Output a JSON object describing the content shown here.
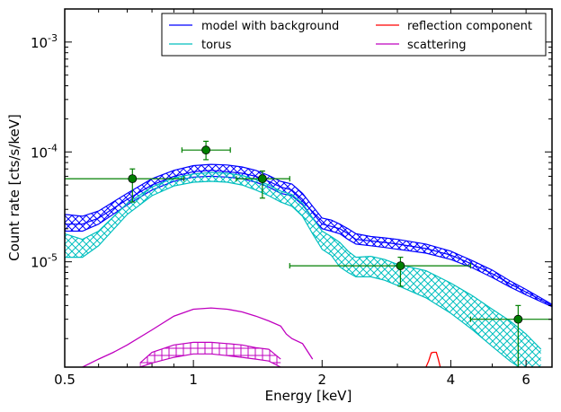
{
  "chart_data": {
    "type": "line",
    "xlabel": "Energy [keV]",
    "ylabel": "Count rate [cts/s/keV]",
    "xscale": "log",
    "yscale": "log",
    "xlim": [
      0.5,
      6.9
    ],
    "ylim": [
      1.1e-06,
      0.002
    ],
    "xticks": [
      {
        "value": 0.5,
        "label": "0.5"
      },
      {
        "value": 1,
        "label": "1"
      },
      {
        "value": 2,
        "label": "2"
      },
      {
        "value": 4,
        "label": "4"
      },
      {
        "value": 6,
        "label": "6"
      }
    ],
    "yticks": [
      {
        "value": 1e-05,
        "base": "10",
        "exp": "-5"
      },
      {
        "value": 0.0001,
        "base": "10",
        "exp": "-4"
      },
      {
        "value": 0.001,
        "base": "10",
        "exp": "-3"
      }
    ],
    "legend_position": "top-right",
    "legend": [
      {
        "name": "model with background",
        "color": "#0000ff"
      },
      {
        "name": "reflection component",
        "color": "#ff0000"
      },
      {
        "name": "torus",
        "color": "#00bfbf"
      },
      {
        "name": "scattering",
        "color": "#bf00bf"
      }
    ],
    "bands": [
      {
        "series": "model with background",
        "color": "#0000ff",
        "hatch": "x",
        "x": [
          0.5,
          0.55,
          0.6,
          0.7,
          0.8,
          0.9,
          1.0,
          1.1,
          1.2,
          1.3,
          1.4,
          1.5,
          1.6,
          1.7,
          1.8,
          1.9,
          2.0,
          2.1,
          2.2,
          2.3,
          2.4,
          2.6,
          2.8,
          3.0,
          3.5,
          4.0,
          4.5,
          5.0,
          5.5,
          6.0,
          6.9
        ],
        "low": [
          1.9e-05,
          1.9e-05,
          2.2e-05,
          3.3e-05,
          4.5e-05,
          5.4e-05,
          5.9e-05,
          6e-05,
          5.9e-05,
          5.7e-05,
          5.3e-05,
          4.8e-05,
          4.2e-05,
          4e-05,
          3.3e-05,
          2.5e-05,
          2e-05,
          1.9e-05,
          1.8e-05,
          1.6e-05,
          1.45e-05,
          1.4e-05,
          1.35e-05,
          1.3e-05,
          1.2e-05,
          1.05e-05,
          8.8e-06,
          7.2e-06,
          5.9e-06,
          5e-06,
          3.9e-06
        ],
        "mid": [
          2.2e-05,
          2.2e-05,
          2.5e-05,
          3.7e-05,
          5e-05,
          6e-05,
          6.6e-05,
          6.8e-05,
          6.6e-05,
          6.4e-05,
          6e-05,
          5.4e-05,
          4.8e-05,
          4.5e-05,
          3.7e-05,
          2.8e-05,
          2.2e-05,
          2.1e-05,
          2e-05,
          1.8e-05,
          1.6e-05,
          1.55e-05,
          1.5e-05,
          1.45e-05,
          1.32e-05,
          1.15e-05,
          9.5e-06,
          7.8e-06,
          6.3e-06,
          5.3e-06,
          4e-06
        ],
        "high": [
          2.7e-05,
          2.6e-05,
          2.9e-05,
          4.2e-05,
          5.7e-05,
          6.8e-05,
          7.5e-05,
          7.7e-05,
          7.6e-05,
          7.3e-05,
          6.8e-05,
          6.1e-05,
          5.4e-05,
          5.1e-05,
          4.2e-05,
          3.2e-05,
          2.5e-05,
          2.4e-05,
          2.2e-05,
          2e-05,
          1.8e-05,
          1.7e-05,
          1.65e-05,
          1.6e-05,
          1.45e-05,
          1.25e-05,
          1.02e-05,
          8.4e-06,
          6.7e-06,
          5.6e-06,
          4.1e-06
        ]
      },
      {
        "series": "torus",
        "color": "#00bfbf",
        "hatch": "x",
        "x": [
          0.5,
          0.55,
          0.6,
          0.7,
          0.8,
          0.9,
          1.0,
          1.1,
          1.2,
          1.3,
          1.4,
          1.5,
          1.6,
          1.7,
          1.8,
          1.9,
          2.0,
          2.1,
          2.2,
          2.3,
          2.4,
          2.6,
          2.8,
          3.0,
          3.5,
          4.0,
          4.5,
          5.0,
          5.5,
          6.0,
          6.5
        ],
        "low": [
          1.1e-05,
          1.1e-05,
          1.4e-05,
          2.7e-05,
          4e-05,
          4.9e-05,
          5.3e-05,
          5.4e-05,
          5.3e-05,
          5e-05,
          4.5e-05,
          4e-05,
          3.5e-05,
          3.2e-05,
          2.6e-05,
          1.8e-05,
          1.3e-05,
          1.15e-05,
          9e-06,
          8e-06,
          7.3e-06,
          7.3e-06,
          6.8e-06,
          6.1e-06,
          4.7e-06,
          3.4e-06,
          2.4e-06,
          1.7e-06,
          1.25e-06,
          1e-06,
          7e-07
        ],
        "high": [
          1.8e-05,
          1.6e-05,
          1.9e-05,
          3.4e-05,
          4.8e-05,
          5.8e-05,
          6.3e-05,
          6.5e-05,
          6.4e-05,
          6.1e-05,
          5.6e-05,
          5e-05,
          4.4e-05,
          4.1e-05,
          3.4e-05,
          2.5e-05,
          1.9e-05,
          1.7e-05,
          1.5e-05,
          1.25e-05,
          1.1e-05,
          1.12e-05,
          1.05e-05,
          9.5e-06,
          8.3e-06,
          6.4e-06,
          4.9e-06,
          3.7e-06,
          2.9e-06,
          2.2e-06,
          1.6e-06
        ]
      },
      {
        "series": "scattering",
        "color": "#bf00bf",
        "hatch": "+",
        "x": [
          0.75,
          0.8,
          0.9,
          1.0,
          1.1,
          1.2,
          1.3,
          1.4,
          1.5,
          1.6
        ],
        "low": [
          1.1e-06,
          1.2e-06,
          1.35e-06,
          1.45e-06,
          1.45e-06,
          1.4e-06,
          1.35e-06,
          1.3e-06,
          1.25e-06,
          1.1e-06
        ],
        "high": [
          1.2e-06,
          1.5e-06,
          1.75e-06,
          1.85e-06,
          1.85e-06,
          1.8e-06,
          1.75e-06,
          1.65e-06,
          1.6e-06,
          1.3e-06
        ]
      }
    ],
    "series": [
      {
        "name": "scattering",
        "color": "#bf00bf",
        "x": [
          0.55,
          0.6,
          0.65,
          0.7,
          0.8,
          0.9,
          1.0,
          1.1,
          1.2,
          1.3,
          1.4,
          1.5,
          1.6,
          1.65,
          1.7,
          1.8,
          1.9
        ],
        "y": [
          1.1e-06,
          1.3e-06,
          1.5e-06,
          1.75e-06,
          2.4e-06,
          3.2e-06,
          3.7e-06,
          3.8e-06,
          3.7e-06,
          3.5e-06,
          3.2e-06,
          2.9e-06,
          2.6e-06,
          2.2e-06,
          2e-06,
          1.8e-06,
          1.3e-06
        ]
      },
      {
        "name": "reflection component",
        "color": "#ff0000",
        "x": [
          3.5,
          3.55,
          3.6,
          3.64,
          3.7,
          3.74,
          3.78
        ],
        "y": [
          1.1e-06,
          1.25e-06,
          1.48e-06,
          1.5e-06,
          1.5e-06,
          1.3e-06,
          1.1e-06
        ]
      }
    ],
    "data_points": {
      "color": "#007f00",
      "points": [
        {
          "x": 0.72,
          "y": 5.7e-05,
          "xlo": 0.5,
          "xhi": 0.95,
          "ylo": 3.5e-05,
          "yhi": 7e-05
        },
        {
          "x": 1.07,
          "y": 0.000104,
          "xlo": 0.94,
          "xhi": 1.22,
          "ylo": 8.5e-05,
          "yhi": 0.000125
        },
        {
          "x": 1.45,
          "y": 5.7e-05,
          "xlo": 1.26,
          "xhi": 1.68,
          "ylo": 3.8e-05,
          "yhi": 6.7e-05
        },
        {
          "x": 3.05,
          "y": 9.2e-06,
          "xlo": 1.68,
          "xhi": 4.45,
          "ylo": 6e-06,
          "yhi": 1.1e-05
        },
        {
          "x": 5.75,
          "y": 3e-06,
          "xlo": 4.45,
          "xhi": 6.9,
          "ylo": 1.1e-06,
          "yhi": 4e-06
        }
      ]
    }
  }
}
